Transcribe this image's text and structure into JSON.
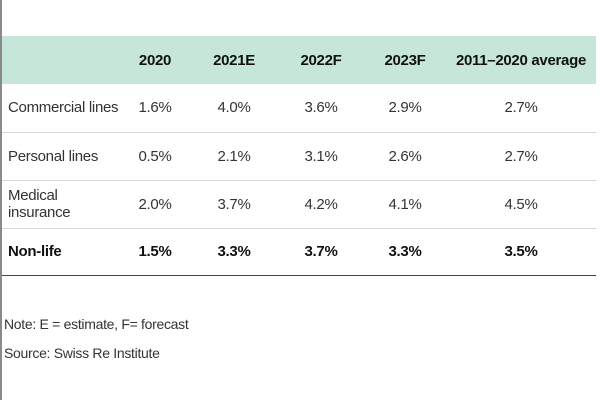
{
  "table": {
    "headers": [
      "",
      "2020",
      "2021E",
      "2022F",
      "2023F",
      "2011–2020 average"
    ],
    "rows": [
      {
        "label": "Commercial lines",
        "values": [
          "1.6%",
          "4.0%",
          "3.6%",
          "2.9%",
          "2.7%"
        ]
      },
      {
        "label": "Personal lines",
        "values": [
          "0.5%",
          "2.1%",
          "3.1%",
          "2.6%",
          "2.7%"
        ]
      },
      {
        "label": "Medical insurance",
        "values": [
          "2.0%",
          "3.7%",
          "4.2%",
          "4.1%",
          "4.5%"
        ]
      },
      {
        "label": "Non-life",
        "values": [
          "1.5%",
          "3.3%",
          "3.7%",
          "3.3%",
          "3.5%"
        ]
      }
    ]
  },
  "notes": {
    "note": "Note: E = estimate, F= forecast",
    "source": "Source: Swiss Re Institute"
  },
  "colors": {
    "header_bg": "#c5e6d9"
  }
}
